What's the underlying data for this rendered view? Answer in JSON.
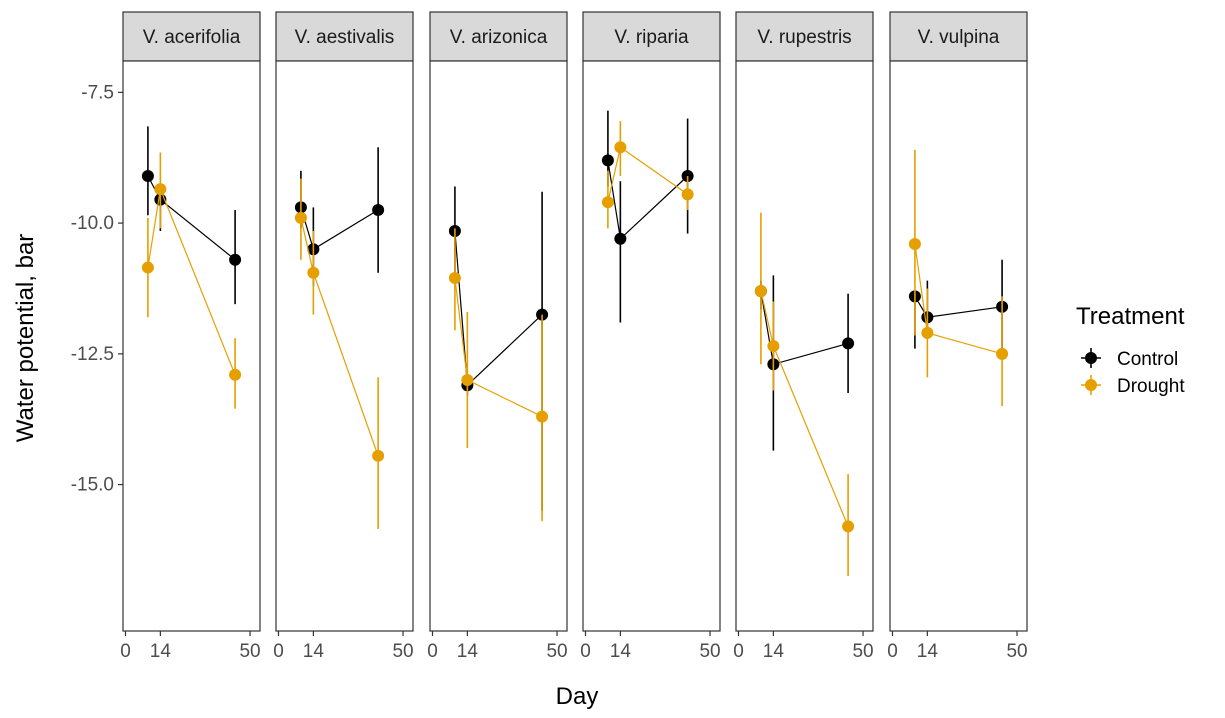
{
  "chart_data": {
    "type": "line",
    "facet_by": "species",
    "facets": [
      "V. acerifolia",
      "V. aestivalis",
      "V. arizonica",
      "V. riparia",
      "V. rupestris",
      "V. vulpina"
    ],
    "xlabel": "Day",
    "ylabel": "Water potential, bar",
    "x_ticks": [
      0,
      14,
      50
    ],
    "y_ticks": [
      -7.5,
      -10.0,
      -12.5,
      -15.0
    ],
    "y_tick_labels": [
      "-7.5",
      "-10.0",
      "-12.5",
      "-15.0"
    ],
    "xlim": [
      -1,
      54
    ],
    "ylim": [
      -17.8,
      -6.9
    ],
    "error_bars": true,
    "grid": false,
    "legend": {
      "title": "Treatment",
      "position": "right",
      "entries": [
        "Control",
        "Drought"
      ]
    },
    "colors": {
      "Control": "#000000",
      "Drought": "#e69f00"
    },
    "series": [
      {
        "name": "Control",
        "color": "#000000",
        "panels": {
          "V. acerifolia": [
            {
              "x": 9,
              "y": -9.1,
              "lo": -9.85,
              "hi": -8.15
            },
            {
              "x": 14,
              "y": -9.55,
              "lo": -10.15,
              "hi": -9.35
            },
            {
              "x": 44,
              "y": -10.7,
              "lo": -11.55,
              "hi": -9.75
            }
          ],
          "V. aestivalis": [
            {
              "x": 9,
              "y": -9.7,
              "lo": -10.1,
              "hi": -9.0
            },
            {
              "x": 14,
              "y": -10.5,
              "lo": -11.2,
              "hi": -9.7
            },
            {
              "x": 40,
              "y": -9.75,
              "lo": -10.95,
              "hi": -8.55
            }
          ],
          "V. arizonica": [
            {
              "x": 9,
              "y": -10.15,
              "lo": -11.05,
              "hi": -9.3
            },
            {
              "x": 14,
              "y": -13.1,
              "lo": -13.3,
              "hi": -12.95
            },
            {
              "x": 44,
              "y": -11.75,
              "lo": -15.5,
              "hi": -9.4
            }
          ],
          "V. riparia": [
            {
              "x": 9,
              "y": -8.8,
              "lo": -9.3,
              "hi": -7.85
            },
            {
              "x": 14,
              "y": -10.3,
              "lo": -11.9,
              "hi": -9.2
            },
            {
              "x": 41,
              "y": -9.1,
              "lo": -10.2,
              "hi": -8.0
            }
          ],
          "V. rupestris": [
            {
              "x": 9,
              "y": -11.3,
              "lo": -11.65,
              "hi": -11.1
            },
            {
              "x": 14,
              "y": -12.7,
              "lo": -14.35,
              "hi": -11.0
            },
            {
              "x": 44,
              "y": -12.3,
              "lo": -13.25,
              "hi": -11.35
            }
          ],
          "V. vulpina": [
            {
              "x": 9,
              "y": -11.4,
              "lo": -12.4,
              "hi": -11.35
            },
            {
              "x": 14,
              "y": -11.8,
              "lo": -12.1,
              "hi": -11.1
            },
            {
              "x": 44,
              "y": -11.6,
              "lo": -12.45,
              "hi": -10.7
            }
          ]
        }
      },
      {
        "name": "Drought",
        "color": "#e69f00",
        "panels": {
          "V. acerifolia": [
            {
              "x": 9,
              "y": -10.85,
              "lo": -11.8,
              "hi": -9.9
            },
            {
              "x": 14,
              "y": -9.35,
              "lo": -10.1,
              "hi": -8.65
            },
            {
              "x": 44,
              "y": -12.9,
              "lo": -13.55,
              "hi": -12.2
            }
          ],
          "V. aestivalis": [
            {
              "x": 9,
              "y": -9.9,
              "lo": -10.7,
              "hi": -9.15
            },
            {
              "x": 14,
              "y": -10.95,
              "lo": -11.75,
              "hi": -10.15
            },
            {
              "x": 40,
              "y": -14.45,
              "lo": -15.85,
              "hi": -12.95
            }
          ],
          "V. arizonica": [
            {
              "x": 9,
              "y": -11.05,
              "lo": -12.05,
              "hi": -10.1
            },
            {
              "x": 14,
              "y": -13.0,
              "lo": -14.3,
              "hi": -11.7
            },
            {
              "x": 44,
              "y": -13.7,
              "lo": -15.7,
              "hi": -11.75
            }
          ],
          "V. riparia": [
            {
              "x": 9,
              "y": -9.6,
              "lo": -10.1,
              "hi": -9.0
            },
            {
              "x": 14,
              "y": -8.55,
              "lo": -9.1,
              "hi": -8.05
            },
            {
              "x": 41,
              "y": -9.45,
              "lo": -9.75,
              "hi": -9.1
            }
          ],
          "V. rupestris": [
            {
              "x": 9,
              "y": -11.3,
              "lo": -12.7,
              "hi": -9.8
            },
            {
              "x": 14,
              "y": -12.35,
              "lo": -13.2,
              "hi": -11.5
            },
            {
              "x": 44,
              "y": -15.8,
              "lo": -16.75,
              "hi": -14.8
            }
          ],
          "V. vulpina": [
            {
              "x": 9,
              "y": -10.4,
              "lo": -12.15,
              "hi": -8.6
            },
            {
              "x": 14,
              "y": -12.1,
              "lo": -12.95,
              "hi": -11.25
            },
            {
              "x": 44,
              "y": -12.5,
              "lo": -13.5,
              "hi": -11.4
            }
          ]
        }
      }
    ]
  }
}
